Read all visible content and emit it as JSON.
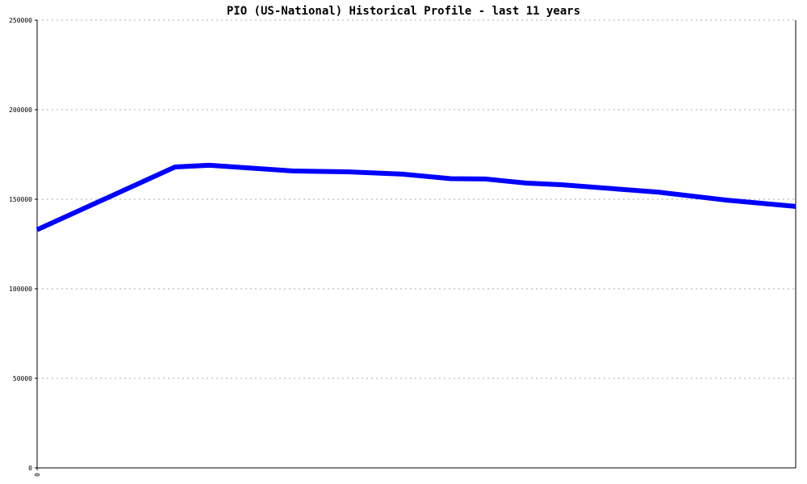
{
  "chart_data": {
    "type": "line",
    "title": "PIO (US-National) Historical Profile - last 11 years",
    "x": [
      0,
      2,
      2.5,
      3.7,
      4.5,
      5.3,
      6,
      6.5,
      7.1,
      7.6,
      9,
      10,
      11
    ],
    "series": [
      {
        "color": "#0000ff",
        "values": [
          133000,
          168000,
          169000,
          165800,
          165300,
          164000,
          161500,
          161300,
          159000,
          158100,
          154000,
          149500,
          146000
        ]
      }
    ],
    "xlim": [
      0,
      11
    ],
    "xticks": [
      0
    ],
    "ylim": [
      0,
      250000
    ],
    "yticks": [
      0,
      50000,
      100000,
      150000,
      200000,
      250000
    ],
    "grid": true
  }
}
